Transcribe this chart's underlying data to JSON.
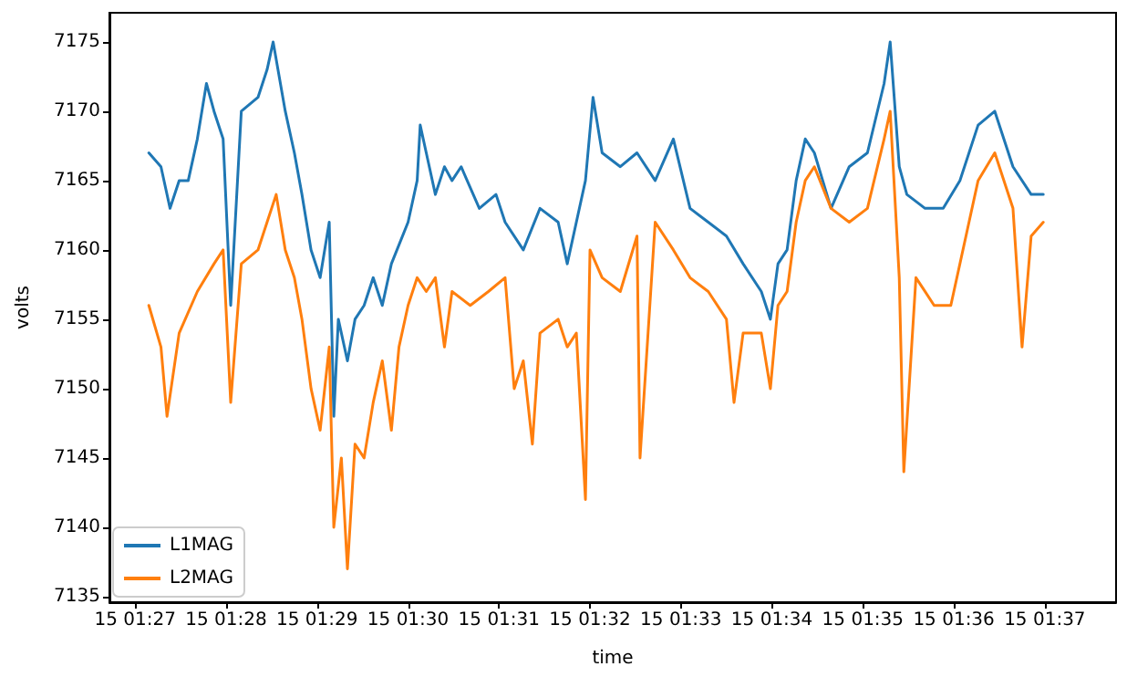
{
  "chart_data": {
    "type": "line",
    "xlabel": "time",
    "ylabel": "volts",
    "xlim": [
      "--01-15T01:26:43",
      "--01-15T01:37:47"
    ],
    "xticks": [
      {
        "value": "--01-15T01:27",
        "label": "15 01:27"
      },
      {
        "value": "--01-15T01:28",
        "label": "15 01:28"
      },
      {
        "value": "--01-15T01:29",
        "label": "15 01:29"
      },
      {
        "value": "--01-15T01:30",
        "label": "15 01:30"
      },
      {
        "value": "--01-15T01:31",
        "label": "15 01:31"
      },
      {
        "value": "--01-15T01:32",
        "label": "15 01:32"
      },
      {
        "value": "--01-15T01:33",
        "label": "15 01:33"
      },
      {
        "value": "--01-15T01:34",
        "label": "15 01:34"
      },
      {
        "value": "--01-15T01:35",
        "label": "15 01:35"
      },
      {
        "value": "--01-15T01:36",
        "label": "15 01:36"
      },
      {
        "value": "--01-15T01:37",
        "label": "15 01:37"
      }
    ],
    "ylim": [
      7134.6,
      7177.1
    ],
    "yticks": [
      7135,
      7140,
      7145,
      7150,
      7155,
      7160,
      7165,
      7170,
      7175
    ],
    "grid": false,
    "legend": "bottom left",
    "line_style": "solid",
    "marker": "none",
    "series": [
      {
        "name": "L1MAG",
        "color": "#1f77b4",
        "x": [
          "--01-15T01:27:09",
          "--01-15T01:27:17",
          "--01-15T01:27:23",
          "--01-15T01:27:29",
          "--01-15T01:27:35",
          "--01-15T01:27:41",
          "--01-15T01:27:47",
          "--01-15T01:27:52",
          "--01-15T01:27:58",
          "--01-15T01:28:03",
          "--01-15T01:28:10",
          "--01-15T01:28:21",
          "--01-15T01:28:27",
          "--01-15T01:28:31",
          "--01-15T01:28:39",
          "--01-15T01:28:45",
          "--01-15T01:28:50",
          "--01-15T01:28:56",
          "--01-15T01:29:02",
          "--01-15T01:29:08",
          "--01-15T01:29:11",
          "--01-15T01:29:14",
          "--01-15T01:29:20",
          "--01-15T01:29:25",
          "--01-15T01:29:31",
          "--01-15T01:29:37",
          "--01-15T01:29:43",
          "--01-15T01:29:49",
          "--01-15T01:30:00",
          "--01-15T01:30:06",
          "--01-15T01:30:08",
          "--01-15T01:30:12",
          "--01-15T01:30:18",
          "--01-15T01:30:24",
          "--01-15T01:30:29",
          "--01-15T01:30:35",
          "--01-15T01:30:47",
          "--01-15T01:30:58",
          "--01-15T01:31:04",
          "--01-15T01:31:16",
          "--01-15T01:31:27",
          "--01-15T01:31:39",
          "--01-15T01:31:45",
          "--01-15T01:31:57",
          "--01-15T01:32:02",
          "--01-15T01:32:08",
          "--01-15T01:32:20",
          "--01-15T01:32:31",
          "--01-15T01:32:43",
          "--01-15T01:32:55",
          "--01-15T01:33:06",
          "--01-15T01:33:18",
          "--01-15T01:33:30",
          "--01-15T01:33:41",
          "--01-15T01:33:53",
          "--01-15T01:33:59",
          "--01-15T01:34:04",
          "--01-15T01:34:10",
          "--01-15T01:34:16",
          "--01-15T01:34:22",
          "--01-15T01:34:28",
          "--01-15T01:34:39",
          "--01-15T01:34:51",
          "--01-15T01:35:03",
          "--01-15T01:35:14",
          "--01-15T01:35:18",
          "--01-15T01:35:24",
          "--01-15T01:35:29",
          "--01-15T01:35:41",
          "--01-15T01:35:53",
          "--01-15T01:36:04",
          "--01-15T01:36:16",
          "--01-15T01:36:27",
          "--01-15T01:36:39",
          "--01-15T01:36:51",
          "--01-15T01:36:59"
        ],
        "values": [
          7167,
          7166,
          7163,
          7165,
          7165,
          7168,
          7172,
          7170,
          7168,
          7156,
          7170,
          7171,
          7173,
          7175,
          7170,
          7167,
          7164,
          7160,
          7158,
          7162,
          7148,
          7155,
          7152,
          7155,
          7156,
          7158,
          7156,
          7159,
          7162,
          7165,
          7169,
          7167,
          7164,
          7166,
          7165,
          7166,
          7163,
          7164,
          7162,
          7160,
          7163,
          7162,
          7159,
          7165,
          7171,
          7167,
          7166,
          7167,
          7165,
          7168,
          7163,
          7162,
          7161,
          7159,
          7157,
          7155,
          7159,
          7160,
          7165,
          7168,
          7167,
          7163,
          7166,
          7167,
          7172,
          7175,
          7166,
          7164,
          7163,
          7163,
          7165,
          7169,
          7170,
          7166,
          7164,
          7164
        ]
      },
      {
        "name": "L2MAG",
        "color": "#ff7f0e",
        "x": [
          "--01-15T01:27:09",
          "--01-15T01:27:17",
          "--01-15T01:27:21",
          "--01-15T01:27:29",
          "--01-15T01:27:41",
          "--01-15T01:27:52",
          "--01-15T01:27:58",
          "--01-15T01:28:03",
          "--01-15T01:28:10",
          "--01-15T01:28:21",
          "--01-15T01:28:27",
          "--01-15T01:28:33",
          "--01-15T01:28:39",
          "--01-15T01:28:45",
          "--01-15T01:28:50",
          "--01-15T01:28:56",
          "--01-15T01:29:02",
          "--01-15T01:29:08",
          "--01-15T01:29:11",
          "--01-15T01:29:16",
          "--01-15T01:29:20",
          "--01-15T01:29:25",
          "--01-15T01:29:31",
          "--01-15T01:29:37",
          "--01-15T01:29:43",
          "--01-15T01:29:49",
          "--01-15T01:29:54",
          "--01-15T01:30:00",
          "--01-15T01:30:06",
          "--01-15T01:30:12",
          "--01-15T01:30:18",
          "--01-15T01:30:24",
          "--01-15T01:30:29",
          "--01-15T01:30:41",
          "--01-15T01:30:53",
          "--01-15T01:31:04",
          "--01-15T01:31:10",
          "--01-15T01:31:16",
          "--01-15T01:31:22",
          "--01-15T01:31:27",
          "--01-15T01:31:39",
          "--01-15T01:31:45",
          "--01-15T01:31:51",
          "--01-15T01:31:57",
          "--01-15T01:32:00",
          "--01-15T01:32:08",
          "--01-15T01:32:20",
          "--01-15T01:32:31",
          "--01-15T01:32:33",
          "--01-15T01:32:43",
          "--01-15T01:32:55",
          "--01-15T01:33:06",
          "--01-15T01:33:18",
          "--01-15T01:33:30",
          "--01-15T01:33:35",
          "--01-15T01:33:41",
          "--01-15T01:33:53",
          "--01-15T01:33:59",
          "--01-15T01:34:04",
          "--01-15T01:34:10",
          "--01-15T01:34:16",
          "--01-15T01:34:22",
          "--01-15T01:34:28",
          "--01-15T01:34:39",
          "--01-15T01:34:51",
          "--01-15T01:35:03",
          "--01-15T01:35:14",
          "--01-15T01:35:18",
          "--01-15T01:35:24",
          "--01-15T01:35:27",
          "--01-15T01:35:35",
          "--01-15T01:35:47",
          "--01-15T01:35:58",
          "--01-15T01:36:10",
          "--01-15T01:36:16",
          "--01-15T01:36:27",
          "--01-15T01:36:39",
          "--01-15T01:36:45",
          "--01-15T01:36:51",
          "--01-15T01:36:59"
        ],
        "values": [
          7156,
          7153,
          7148,
          7154,
          7157,
          7159,
          7160,
          7149,
          7159,
          7160,
          7162,
          7164,
          7160,
          7158,
          7155,
          7150,
          7147,
          7153,
          7140,
          7145,
          7137,
          7146,
          7145,
          7149,
          7152,
          7147,
          7153,
          7156,
          7158,
          7157,
          7158,
          7153,
          7157,
          7156,
          7157,
          7158,
          7150,
          7152,
          7146,
          7154,
          7155,
          7153,
          7154,
          7142,
          7160,
          7158,
          7157,
          7161,
          7145,
          7162,
          7160,
          7158,
          7157,
          7155,
          7149,
          7154,
          7154,
          7150,
          7156,
          7157,
          7162,
          7165,
          7166,
          7163,
          7162,
          7163,
          7168,
          7170,
          7158,
          7144,
          7158,
          7156,
          7156,
          7162,
          7165,
          7167,
          7163,
          7153,
          7161,
          7162
        ]
      }
    ]
  }
}
